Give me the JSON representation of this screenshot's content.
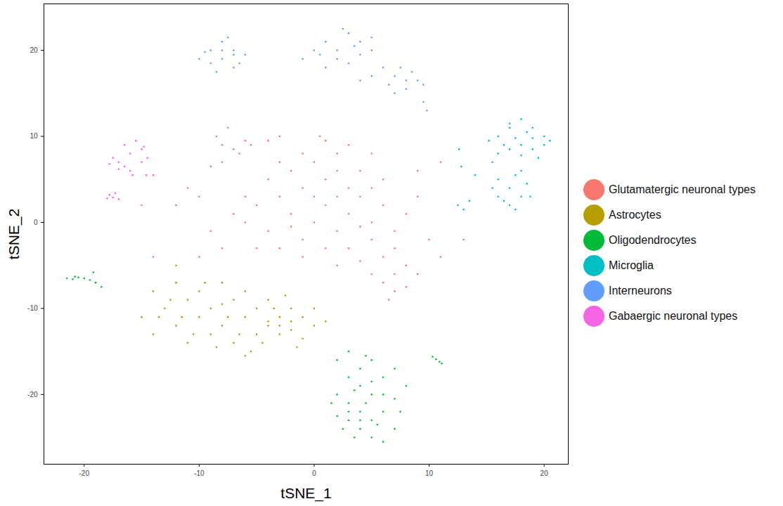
{
  "chart_data": {
    "type": "scatter",
    "xlabel": "tSNE_1",
    "ylabel": "tSNE_2",
    "xlim": [
      -23.5,
      22.1
    ],
    "ylim": [
      -28.1,
      25.4
    ],
    "xticks": [
      -20,
      -10,
      0,
      10,
      20
    ],
    "yticks": [
      -20,
      -10,
      0,
      10,
      20
    ],
    "grid": false,
    "legend": "right",
    "series": [
      {
        "name": "Glutamatergic neuronal types",
        "color": "#F8766D",
        "values": [
          [
            -6,
            0
          ],
          [
            -5,
            2
          ],
          [
            -4,
            -1
          ],
          [
            -3,
            3
          ],
          [
            -2,
            1
          ],
          [
            -1,
            -2
          ],
          [
            0,
            0
          ],
          [
            1,
            2
          ],
          [
            2,
            -1
          ],
          [
            3,
            1
          ],
          [
            4,
            3
          ],
          [
            5,
            0
          ],
          [
            6,
            2
          ],
          [
            7,
            -1
          ],
          [
            8,
            1
          ],
          [
            -4,
            5
          ],
          [
            -2,
            6
          ],
          [
            0,
            7
          ],
          [
            2,
            8
          ],
          [
            4,
            6
          ],
          [
            6,
            5
          ],
          [
            1,
            9.5
          ],
          [
            0.5,
            10
          ],
          [
            3,
            9
          ],
          [
            -1,
            4
          ],
          [
            1,
            5
          ],
          [
            3,
            4
          ],
          [
            5,
            4
          ],
          [
            -3,
            -3
          ],
          [
            -1,
            -4
          ],
          [
            1,
            -3
          ],
          [
            3,
            -3
          ],
          [
            5,
            -2
          ],
          [
            7,
            -3
          ],
          [
            2,
            -5
          ],
          [
            -5,
            -3
          ],
          [
            -6,
            3
          ],
          [
            -7,
            1
          ],
          [
            0,
            3
          ],
          [
            2,
            3
          ],
          [
            -2,
            -0.5
          ],
          [
            4,
            -0.5
          ],
          [
            6,
            -4
          ],
          [
            8,
            -5
          ],
          [
            7,
            -6
          ],
          [
            6,
            -7
          ],
          [
            8,
            -7.5
          ],
          [
            5,
            -6
          ],
          [
            7,
            -8
          ],
          [
            9,
            -6
          ],
          [
            6.5,
            -9
          ],
          [
            4,
            -4.5
          ],
          [
            -8,
            9
          ],
          [
            -7,
            8.5
          ],
          [
            -6,
            9.5
          ],
          [
            -8.5,
            10
          ],
          [
            -7.5,
            11
          ],
          [
            -6.5,
            8
          ],
          [
            -5.5,
            9
          ],
          [
            -8,
            7
          ],
          [
            -9,
            6.5
          ],
          [
            -4,
            9.5
          ],
          [
            -10,
            3
          ],
          [
            -11,
            4
          ],
          [
            -12,
            2
          ],
          [
            -9,
            -1
          ],
          [
            -10,
            -4
          ],
          [
            -8,
            -3
          ],
          [
            9,
            3
          ],
          [
            10,
            -2
          ],
          [
            9,
            6
          ],
          [
            11,
            -4
          ],
          [
            -3,
            10
          ],
          [
            5,
            8
          ],
          [
            -14,
            -4
          ],
          [
            13,
            -2
          ],
          [
            11,
            7
          ],
          [
            -1,
            8
          ],
          [
            2,
            6
          ],
          [
            -3,
            7
          ]
        ]
      },
      {
        "name": "Astrocytes",
        "color": "#B79F00",
        "values": [
          [
            -14,
            -8
          ],
          [
            -13,
            -10
          ],
          [
            -12,
            -7
          ],
          [
            -12,
            -12
          ],
          [
            -11,
            -9
          ],
          [
            -11,
            -14
          ],
          [
            -10,
            -8
          ],
          [
            -10,
            -11
          ],
          [
            -9,
            -13
          ],
          [
            -9,
            -10
          ],
          [
            -8,
            -7
          ],
          [
            -8,
            -12
          ],
          [
            -7,
            -9
          ],
          [
            -7,
            -14
          ],
          [
            -6,
            -11
          ],
          [
            -6,
            -8
          ],
          [
            -5,
            -13
          ],
          [
            -5,
            -10
          ],
          [
            -4,
            -12
          ],
          [
            -4,
            -9
          ],
          [
            -3,
            -11
          ],
          [
            -3,
            -13
          ],
          [
            -2,
            -10
          ],
          [
            -2,
            -12.5
          ],
          [
            -1,
            -11
          ],
          [
            -1,
            -13.5
          ],
          [
            0,
            -12
          ],
          [
            0,
            -10
          ],
          [
            1,
            -11.5
          ],
          [
            -13.5,
            -11
          ],
          [
            -12.5,
            -9
          ],
          [
            -11.5,
            -11
          ],
          [
            -10.5,
            -13
          ],
          [
            -9.5,
            -7
          ],
          [
            -8.5,
            -14.5
          ],
          [
            -7.5,
            -11
          ],
          [
            -6.5,
            -13
          ],
          [
            -5.5,
            -15
          ],
          [
            -4.5,
            -14
          ],
          [
            -3.5,
            -10
          ],
          [
            -2.5,
            -8.5
          ],
          [
            -1.5,
            -14.5
          ],
          [
            -15,
            -11
          ],
          [
            -14,
            -13
          ],
          [
            -12,
            -5
          ],
          [
            -8,
            -9.5
          ],
          [
            -4,
            -11.5
          ],
          [
            -2,
            -11.5
          ],
          [
            -3,
            -12
          ],
          [
            -6,
            -15.5
          ]
        ]
      },
      {
        "name": "Oligodendrocytes",
        "color": "#00BA38",
        "values": [
          [
            2,
            -16
          ],
          [
            3,
            -15
          ],
          [
            4,
            -17
          ],
          [
            5,
            -16
          ],
          [
            6,
            -18
          ],
          [
            7,
            -17
          ],
          [
            3,
            -18
          ],
          [
            4,
            -19
          ],
          [
            5,
            -20
          ],
          [
            2,
            -20
          ],
          [
            3,
            -21
          ],
          [
            4,
            -22
          ],
          [
            5,
            -23
          ],
          [
            6,
            -22
          ],
          [
            7,
            -24
          ],
          [
            3,
            -23
          ],
          [
            2,
            -22.5
          ],
          [
            4,
            -24
          ],
          [
            5,
            -25
          ],
          [
            6,
            -25.5
          ],
          [
            7.5,
            -22
          ],
          [
            8,
            -19
          ],
          [
            2.5,
            -24
          ],
          [
            3.5,
            -25
          ],
          [
            1.5,
            -21
          ],
          [
            6,
            -20
          ],
          [
            5,
            -18.5
          ],
          [
            4.5,
            -15.5
          ],
          [
            3.5,
            -19.5
          ],
          [
            7,
            -20.5
          ],
          [
            4,
            -23
          ],
          [
            5.5,
            -23.5
          ],
          [
            3,
            -22
          ],
          [
            4.5,
            -21
          ],
          [
            -21.5,
            -6.5
          ],
          [
            -21,
            -6.6
          ],
          [
            -20.5,
            -6.4
          ],
          [
            -20,
            -6.5
          ],
          [
            -20.8,
            -6.3
          ],
          [
            -19.5,
            -6.7
          ],
          [
            -19,
            -7
          ],
          [
            -19.2,
            -5.8
          ],
          [
            -18.5,
            -7.5
          ],
          [
            10.3,
            -15.6
          ],
          [
            10.6,
            -15.9
          ],
          [
            10.9,
            -16.2
          ],
          [
            11.1,
            -16.4
          ]
        ]
      },
      {
        "name": "Microglia",
        "color": "#00BFC4",
        "values": [
          [
            16,
            10
          ],
          [
            17,
            11
          ],
          [
            18,
            12
          ],
          [
            19,
            11
          ],
          [
            20,
            10
          ],
          [
            18,
            9
          ],
          [
            17,
            8.5
          ],
          [
            19,
            8.5
          ],
          [
            20,
            9
          ],
          [
            18.5,
            10.5
          ],
          [
            17.5,
            9.8
          ],
          [
            16.5,
            9
          ],
          [
            19.5,
            7.5
          ],
          [
            17,
            11.5
          ],
          [
            20.5,
            9.5
          ],
          [
            18,
            7.8
          ],
          [
            16,
            8
          ],
          [
            19,
            9.8
          ],
          [
            16,
            5
          ],
          [
            17,
            4
          ],
          [
            18,
            3
          ],
          [
            16.5,
            2.5
          ],
          [
            17.5,
            5.5
          ],
          [
            18.5,
            4.5
          ],
          [
            16,
            3
          ],
          [
            17,
            2
          ],
          [
            18,
            6
          ],
          [
            15.5,
            4
          ],
          [
            17.5,
            1.5
          ],
          [
            18.8,
            3
          ],
          [
            12.5,
            2
          ],
          [
            13,
            1.5
          ],
          [
            13.5,
            2.5
          ],
          [
            12.8,
            6.5
          ],
          [
            12.6,
            8.5
          ],
          [
            14,
            5.5
          ],
          [
            15.5,
            7
          ],
          [
            15.2,
            9.5
          ]
        ]
      },
      {
        "name": "Interneurons",
        "color": "#619CFF",
        "values": [
          [
            -10,
            19
          ],
          [
            -9,
            20
          ],
          [
            -8,
            21
          ],
          [
            -7,
            20
          ],
          [
            -6,
            19.5
          ],
          [
            -9,
            18.5
          ],
          [
            -8,
            19
          ],
          [
            -7,
            18
          ],
          [
            -8.5,
            17.5
          ],
          [
            -7.5,
            21.5
          ],
          [
            -8,
            20
          ],
          [
            -9.5,
            19.8
          ],
          [
            -6.5,
            18.5
          ],
          [
            -7,
            19.5
          ],
          [
            -1,
            19
          ],
          [
            0,
            20
          ],
          [
            1,
            21
          ],
          [
            2,
            19
          ],
          [
            3,
            22
          ],
          [
            4,
            21
          ],
          [
            5,
            20
          ],
          [
            2,
            20
          ],
          [
            1,
            18
          ],
          [
            3,
            18.5
          ],
          [
            4,
            19.5
          ],
          [
            5,
            21.5
          ],
          [
            2.5,
            22.5
          ],
          [
            0.5,
            19.5
          ],
          [
            3.5,
            20.5
          ],
          [
            6,
            18
          ],
          [
            7,
            17
          ],
          [
            8,
            16.5
          ],
          [
            7.5,
            18
          ],
          [
            8.5,
            17.5
          ],
          [
            6.5,
            16
          ],
          [
            9,
            16.5
          ],
          [
            9.5,
            16
          ],
          [
            8,
            15.5
          ],
          [
            7,
            15
          ],
          [
            9.5,
            14
          ],
          [
            9.8,
            13
          ],
          [
            5,
            17
          ],
          [
            4,
            16.5
          ]
        ]
      },
      {
        "name": "Gabaergic neuronal types",
        "color": "#F564E3",
        "values": [
          [
            -17,
            7
          ],
          [
            -16,
            8
          ],
          [
            -15,
            8.5
          ],
          [
            -16.5,
            6.5
          ],
          [
            -17.5,
            7.5
          ],
          [
            -15.5,
            9.5
          ],
          [
            -14.5,
            7.5
          ],
          [
            -16,
            6
          ],
          [
            -17,
            6.2
          ],
          [
            -15,
            7
          ],
          [
            -16.5,
            9
          ],
          [
            -14.8,
            8.8
          ],
          [
            -17.8,
            6.8
          ],
          [
            -15.8,
            5.5
          ],
          [
            -18,
            2.8
          ],
          [
            -17.5,
            2.9
          ],
          [
            -17,
            2.7
          ],
          [
            -17.8,
            3.2
          ],
          [
            -17.3,
            3.4
          ],
          [
            -14,
            5.5
          ],
          [
            -14.6,
            5.5
          ],
          [
            -15,
            2
          ]
        ]
      }
    ]
  }
}
